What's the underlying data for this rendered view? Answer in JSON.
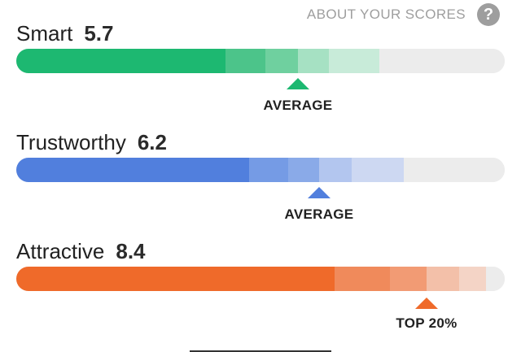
{
  "header": {
    "about_label": "ABOUT YOUR SCORES",
    "help_icon": "help-circle-icon",
    "help_glyph": "?"
  },
  "scores": [
    {
      "label": "Smart",
      "value": "5.7",
      "marker_label": "AVERAGE",
      "color": "#1db871",
      "segment_colors": [
        "#1db871",
        "#4cc48a",
        "#6fd09f",
        "#a6e1c3",
        "#c8ebd9",
        "#ececec"
      ]
    },
    {
      "label": "Trustworthy",
      "value": "6.2",
      "marker_label": "AVERAGE",
      "color": "#517fdd",
      "segment_colors": [
        "#517fdd",
        "#759be5",
        "#8aaae8",
        "#b3c6ef",
        "#cdd8f2",
        "#ececec"
      ]
    },
    {
      "label": "Attractive",
      "value": "8.4",
      "marker_label": "TOP 20%",
      "color": "#ef6a2a",
      "segment_colors": [
        "#ef6a2a",
        "#f08a5b",
        "#f29b74",
        "#f3c0a9",
        "#f4d4c6",
        "#ececec"
      ]
    }
  ]
}
